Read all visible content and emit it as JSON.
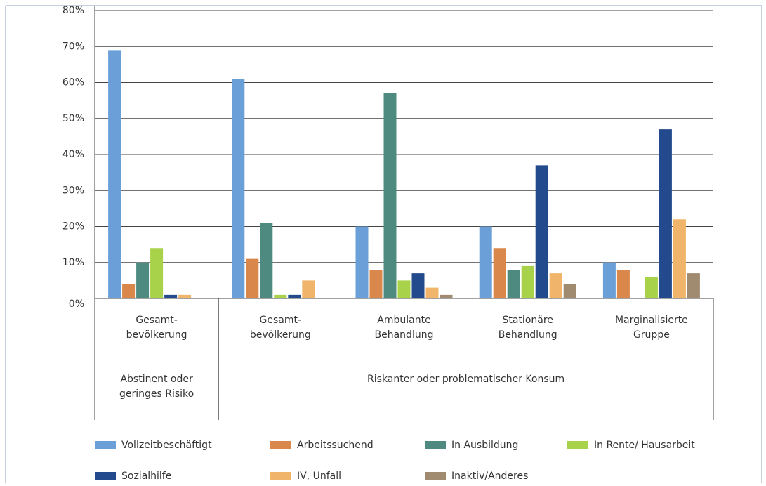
{
  "chart_data": {
    "type": "bar",
    "categories": [
      "Gesamt-\nbevölkerung",
      "Gesamt-\nbevölkerung",
      "Ambulante\nBehandlung",
      "Stationäre\nBehandlung",
      "Marginalisierte\nGruppe"
    ],
    "group_labels": [
      "Abstinent oder\ngeringes Risiko",
      "Riskanter oder problematischer Konsum"
    ],
    "series": [
      {
        "name": "Vollzeitbeschäftigt",
        "color": "#6a9fd8",
        "values": [
          69,
          61,
          20,
          20,
          10
        ]
      },
      {
        "name": "Arbeitssuchend",
        "color": "#d9874a",
        "values": [
          4,
          11,
          8,
          14,
          8
        ]
      },
      {
        "name": "In Ausbildung",
        "color": "#4e8a80",
        "values": [
          10,
          21,
          57,
          8,
          0
        ]
      },
      {
        "name": "In Rente/ Hausarbeit",
        "color": "#a8d24a",
        "values": [
          14,
          1,
          5,
          9,
          6
        ]
      },
      {
        "name": "Sozialhilfe",
        "color": "#234a8c",
        "values": [
          1,
          1,
          7,
          37,
          47
        ]
      },
      {
        "name": "IV, Unfall",
        "color": "#f0b56a",
        "values": [
          1,
          5,
          3,
          7,
          22
        ]
      },
      {
        "name": "Inaktiv/Anderes",
        "color": "#a08a70",
        "values": [
          0,
          0,
          1,
          4,
          7
        ]
      }
    ],
    "ylim": [
      0,
      80
    ],
    "yticks": [
      {
        "value": 0,
        "label": "0%"
      },
      {
        "value": 10,
        "label": "10%"
      },
      {
        "value": 20,
        "label": "20%"
      },
      {
        "value": 30,
        "label": "30%"
      },
      {
        "value": 40,
        "label": "40%"
      },
      {
        "value": 50,
        "label": "50%"
      },
      {
        "value": 60,
        "label": "60%"
      },
      {
        "value": 70,
        "label": "70%"
      },
      {
        "value": 80,
        "label": "80%"
      }
    ],
    "grid": true
  }
}
